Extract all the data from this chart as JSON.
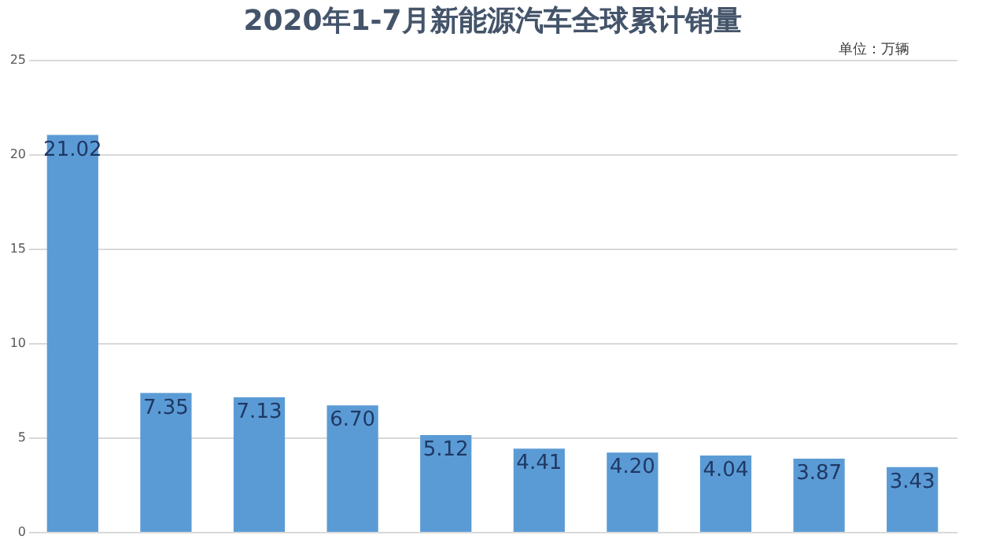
{
  "chart_data": {
    "type": "bar",
    "title": "2020年1-7月新能源汽车全球累计销量",
    "annotations": [
      "单位：万辆"
    ],
    "categories": [
      null,
      null,
      null,
      null,
      null,
      null,
      null,
      null,
      null,
      null
    ],
    "values": [
      21.02,
      7.35,
      7.13,
      6.7,
      5.12,
      4.41,
      4.2,
      4.04,
      3.87,
      3.43
    ],
    "value_labels": [
      "21.02",
      "7.35",
      "7.13",
      "6.70",
      "5.12",
      "4.41",
      "4.20",
      "4.04",
      "3.87",
      "3.43"
    ],
    "color": "#5b9bd5",
    "ylim": [
      0,
      25
    ],
    "yticks": [
      0,
      5,
      10,
      15,
      20,
      25
    ],
    "grid": "y",
    "tick_labels": "y"
  }
}
